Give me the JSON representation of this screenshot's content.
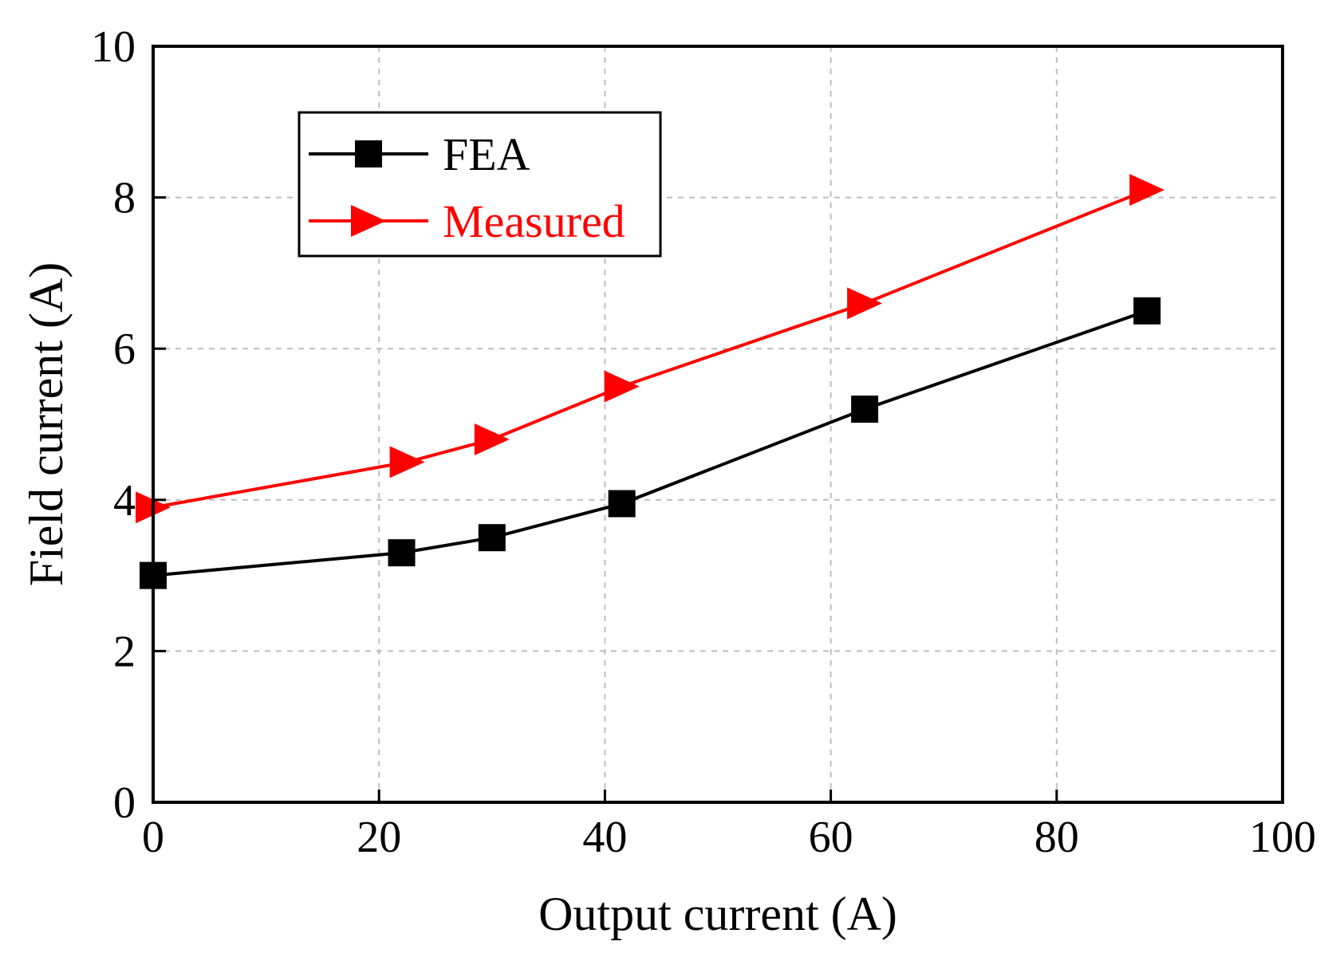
{
  "chart_data": {
    "type": "line",
    "title": "",
    "xlabel": "Output current (A)",
    "ylabel": "Field current (A)",
    "xlim": [
      0,
      100
    ],
    "ylim": [
      0,
      10
    ],
    "xticks": [
      0,
      20,
      40,
      60,
      80,
      100
    ],
    "yticks": [
      0,
      2,
      4,
      6,
      8,
      10
    ],
    "grid": true,
    "legend_position": "top-left",
    "series": [
      {
        "name": "FEA",
        "color": "#000000",
        "marker": "square",
        "x": [
          0,
          22,
          30,
          41.5,
          63,
          88
        ],
        "y": [
          3.0,
          3.3,
          3.5,
          3.95,
          5.2,
          6.5
        ]
      },
      {
        "name": "Measured",
        "color": "#ff0000",
        "marker": "triangle-right",
        "x": [
          0,
          22.5,
          30,
          41.5,
          63,
          88
        ],
        "y": [
          3.9,
          4.5,
          4.8,
          5.5,
          6.6,
          8.1
        ]
      }
    ]
  }
}
